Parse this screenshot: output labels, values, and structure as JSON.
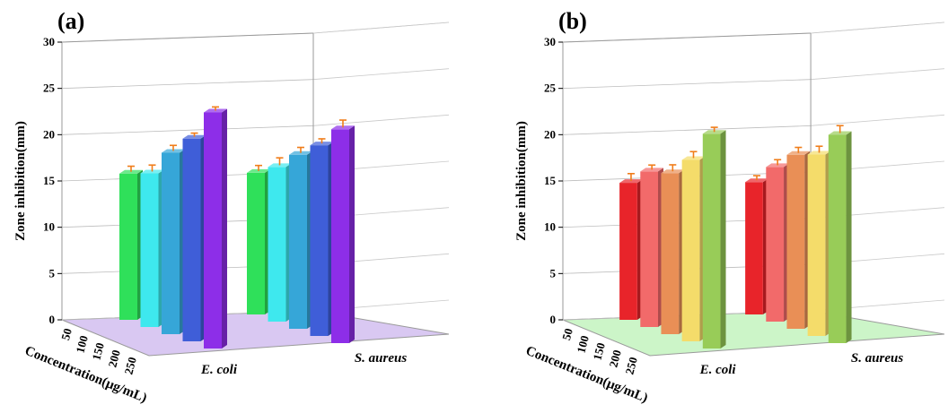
{
  "chart_data": [
    {
      "type": "bar",
      "panel_label": "(a)",
      "ylabel": "Zone inhibition(mm)",
      "xlabel": "Concentration(μg/mL)",
      "ylim": [
        0,
        30
      ],
      "yticks": [
        "0",
        "5",
        "10",
        "15",
        "20",
        "25",
        "30"
      ],
      "depth_ticks": [
        "50",
        "100",
        "150",
        "200",
        "250"
      ],
      "categories": [
        "E. coli",
        "S. aureus"
      ],
      "floor_color": "#d9c8f2",
      "error_color": "#f07d1a",
      "series": [
        {
          "name": "50",
          "color": "#2fe05a",
          "values": [
            15.8,
            15.3
          ],
          "errors": [
            0.6,
            0.6
          ]
        },
        {
          "name": "100",
          "color": "#3ee8ee",
          "values": [
            16.6,
            16.7
          ],
          "errors": [
            0.7,
            0.8
          ]
        },
        {
          "name": "150",
          "color": "#36a6d8",
          "values": [
            19.6,
            18.8
          ],
          "errors": [
            0.6,
            0.6
          ]
        },
        {
          "name": "200",
          "color": "#3f5ed8",
          "values": [
            21.9,
            20.6
          ],
          "errors": [
            0.4,
            0.5
          ]
        },
        {
          "name": "250",
          "color": "#8d2ee8",
          "values": [
            25.5,
            23.1
          ],
          "errors": [
            0.4,
            0.8
          ]
        }
      ]
    },
    {
      "type": "bar",
      "panel_label": "(b)",
      "ylabel": "Zone inhibition(mm)",
      "xlabel": "Concentration(μg/mL)",
      "ylim": [
        0,
        30
      ],
      "yticks": [
        "0",
        "5",
        "10",
        "15",
        "20",
        "25",
        "30"
      ],
      "depth_ticks": [
        "50",
        "100",
        "150",
        "200",
        "250"
      ],
      "categories": [
        "E. coli",
        "S. aureus"
      ],
      "floor_color": "#ccf5c8",
      "error_color": "#f07d1a",
      "series": [
        {
          "name": "50",
          "color": "#e8242a",
          "values": [
            14.8,
            14.3
          ],
          "errors": [
            0.8,
            0.5
          ]
        },
        {
          "name": "100",
          "color": "#f26a6a",
          "values": [
            16.8,
            16.7
          ],
          "errors": [
            0.5,
            0.6
          ]
        },
        {
          "name": "150",
          "color": "#e98f56",
          "values": [
            17.4,
            18.8
          ],
          "errors": [
            0.7,
            0.6
          ]
        },
        {
          "name": "200",
          "color": "#f4dc6a",
          "values": [
            19.6,
            19.6
          ],
          "errors": [
            0.7,
            0.7
          ]
        },
        {
          "name": "250",
          "color": "#98cc58",
          "values": [
            23.2,
            22.5
          ],
          "errors": [
            0.5,
            0.8
          ]
        }
      ]
    }
  ]
}
